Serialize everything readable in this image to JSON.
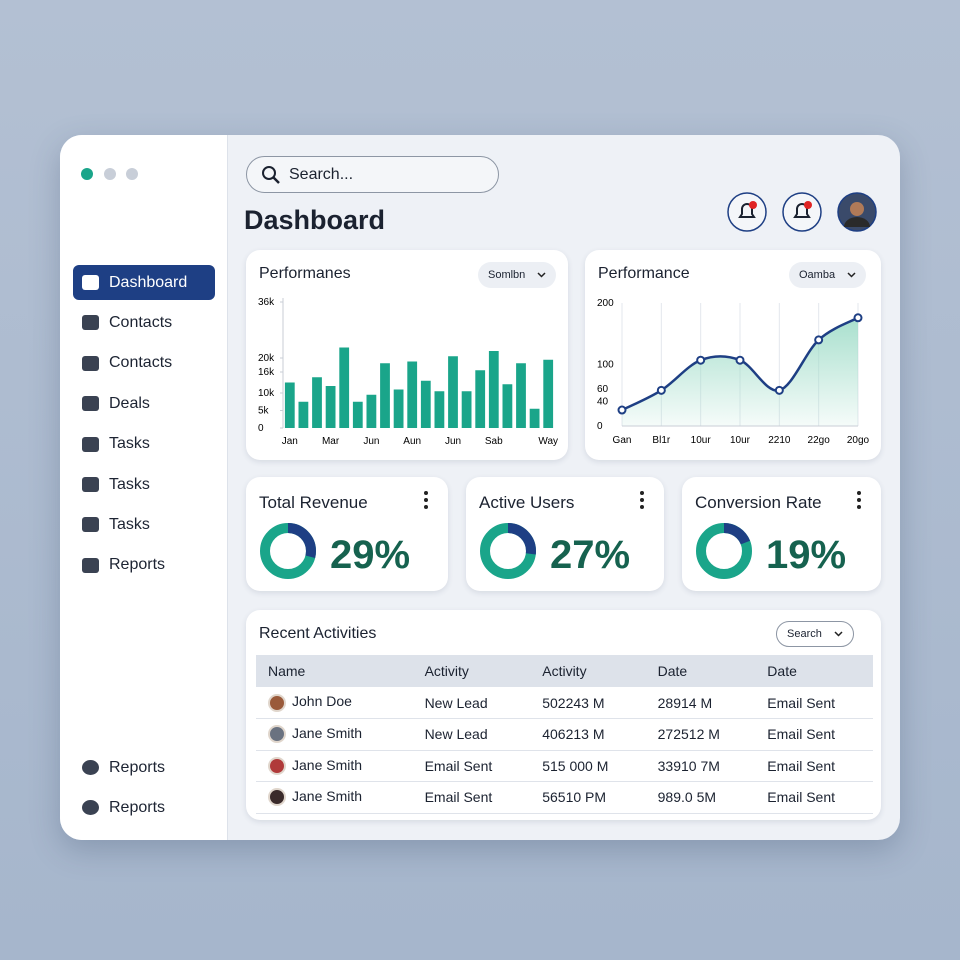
{
  "header": {
    "search_placeholder": "Search...",
    "title": "Dashboard"
  },
  "sidebar": {
    "items": [
      "Dashboard",
      "Contacts",
      "Contacts",
      "Deals",
      "Tasks",
      "Tasks",
      "Tasks",
      "Reports"
    ],
    "bottom_items": [
      "Reports",
      "Reports"
    ]
  },
  "chart_data": [
    {
      "type": "bar",
      "title": "Performanes",
      "filter": "Somlbn",
      "color": "#1aa58a",
      "categories": [
        "Jan",
        null,
        null,
        "Mar",
        null,
        null,
        "Jun",
        null,
        null,
        "Aun",
        null,
        null,
        "Jun",
        null,
        null,
        "Sab",
        null,
        null,
        null,
        "Way"
      ],
      "values": [
        13000,
        7500,
        14500,
        12000,
        23000,
        7500,
        9500,
        18500,
        11000,
        19000,
        13500,
        10500,
        20500,
        10500,
        16500,
        22000,
        12500,
        18500,
        5500,
        19500
      ],
      "ylim": [
        0,
        36000
      ],
      "yticks": [
        0,
        {
          "value": 5000,
          "label": "5k"
        },
        {
          "value": 10000,
          "label": "10k"
        },
        {
          "value": 16000,
          "label": "16k"
        },
        {
          "value": 20000,
          "label": "20k"
        },
        {
          "value": 36000,
          "label": "36k"
        }
      ]
    },
    {
      "type": "line",
      "title": "Performance",
      "filter": "Oamba",
      "color": "#1e3f84",
      "fill": "#9fdcc8",
      "categories": [
        "Gan",
        "Bl1r",
        "10ur",
        "10ur",
        "2210",
        "22go",
        "20go"
      ],
      "values": [
        26,
        58,
        107,
        107,
        58,
        140,
        176
      ],
      "ylim": [
        0,
        200
      ],
      "yticks": [
        0,
        40,
        60,
        100,
        200
      ],
      "grid": true
    }
  ],
  "kpis": [
    {
      "title": "Total Revenue",
      "value": 29,
      "value_label": "29%"
    },
    {
      "title": "Active Users",
      "value": 27,
      "value_label": "27%"
    },
    {
      "title": "Conversion Rate",
      "value": 19,
      "value_label": "19%"
    }
  ],
  "activities": {
    "title": "Recent Activities",
    "filter": "Search",
    "columns": [
      "Name",
      "Activity",
      "Activity",
      "Date",
      "Date"
    ],
    "rows": [
      [
        "John Doe",
        "New Lead",
        "502243 M",
        "28914 M",
        "Email Sent"
      ],
      [
        "Jane Smith",
        "New Lead",
        "406213 M",
        "272512 M",
        "Email Sent"
      ],
      [
        "Jane Smith",
        "Email Sent",
        "515 000 M",
        "33910 7M",
        "Email Sent"
      ],
      [
        "Jane Smith",
        "Email Sent",
        "56510 PM",
        "989.0 5M",
        "Email Sent"
      ]
    ]
  }
}
